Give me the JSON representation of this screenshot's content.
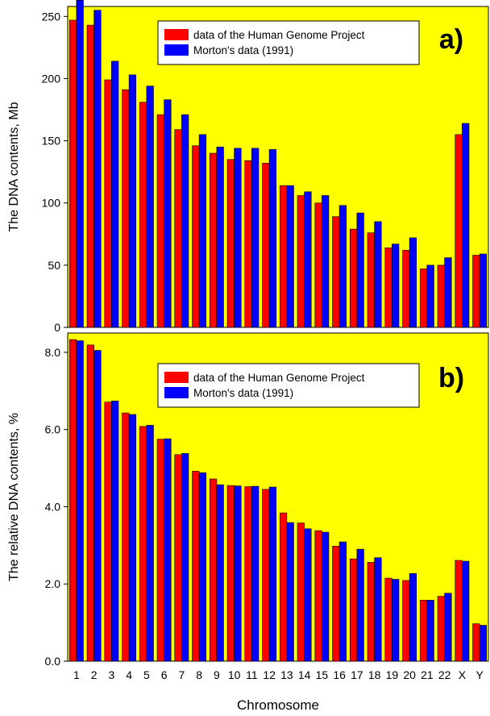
{
  "figure": {
    "xlabel": "Chromosome"
  },
  "chart_data": [
    {
      "type": "bar",
      "panel_label": "a)",
      "ylabel": "The DNA contents, Mb",
      "ylim": [
        0,
        258
      ],
      "yticks": [
        "0",
        "50",
        "100",
        "150",
        "200",
        "250"
      ],
      "ytick_values": [
        0,
        50,
        100,
        150,
        200,
        250
      ],
      "categories": [
        "1",
        "2",
        "3",
        "4",
        "5",
        "6",
        "7",
        "8",
        "9",
        "10",
        "11",
        "12",
        "13",
        "14",
        "15",
        "16",
        "17",
        "18",
        "19",
        "20",
        "21",
        "22",
        "X",
        "Y"
      ],
      "plot_background": "#ffff00",
      "legend_position": "top-right",
      "series": [
        {
          "name": "data of the Human Genome Project",
          "color": "#ff0000",
          "values": [
            247,
            243,
            199,
            191,
            181,
            171,
            159,
            146,
            140,
            135,
            134,
            132,
            114,
            106,
            100,
            89,
            79,
            76,
            64,
            62,
            47,
            50,
            155,
            58
          ]
        },
        {
          "name": "Morton's data (1991)",
          "color": "#0000ff",
          "values": [
            263,
            255,
            214,
            203,
            194,
            183,
            171,
            155,
            145,
            144,
            144,
            143,
            114,
            109,
            106,
            98,
            92,
            85,
            67,
            72,
            50,
            56,
            164,
            59
          ]
        }
      ]
    },
    {
      "type": "bar",
      "panel_label": "b)",
      "ylabel": "The relative DNA contents, %",
      "ylim": [
        0,
        8.5
      ],
      "yticks": [
        "0.0",
        "2.0",
        "4.0",
        "6.0",
        "8.0"
      ],
      "ytick_values": [
        0,
        2,
        4,
        6,
        8
      ],
      "categories": [
        "1",
        "2",
        "3",
        "4",
        "5",
        "6",
        "7",
        "8",
        "9",
        "10",
        "11",
        "12",
        "13",
        "14",
        "15",
        "16",
        "17",
        "18",
        "19",
        "20",
        "21",
        "22",
        "X",
        "Y"
      ],
      "plot_background": "#ffff00",
      "legend_position": "top-right",
      "series": [
        {
          "name": "data of the Human Genome Project",
          "color": "#ff0000",
          "values": [
            8.33,
            8.19,
            6.71,
            6.43,
            6.08,
            5.75,
            5.35,
            4.92,
            4.72,
            4.55,
            4.52,
            4.45,
            3.84,
            3.58,
            3.38,
            2.98,
            2.65,
            2.56,
            2.15,
            2.09,
            1.58,
            1.68,
            2.61,
            0.97
          ]
        },
        {
          "name": "Morton's data (1991)",
          "color": "#0000ff",
          "values": [
            8.3,
            8.05,
            6.74,
            6.39,
            6.11,
            5.76,
            5.38,
            4.88,
            4.57,
            4.54,
            4.53,
            4.51,
            3.59,
            3.43,
            3.34,
            3.09,
            2.9,
            2.68,
            2.12,
            2.27,
            1.58,
            1.76,
            2.59,
            0.93
          ]
        }
      ]
    }
  ]
}
